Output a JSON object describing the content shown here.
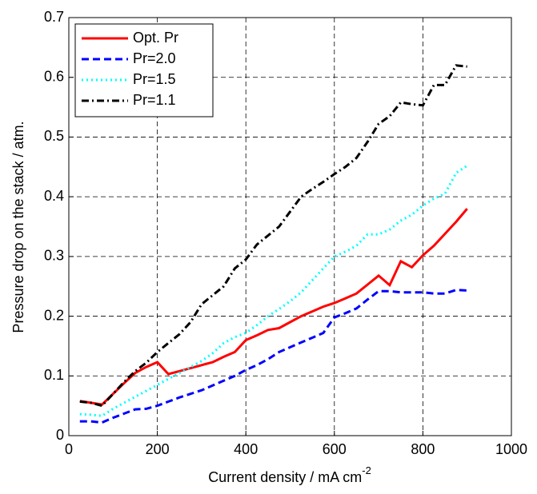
{
  "chart_data": {
    "type": "line",
    "xlabel": "Current density / mA cm",
    "xlabel_sup": "-2",
    "ylabel": "Pressure drop on the stack / atm.",
    "x": [
      25,
      50,
      75,
      100,
      125,
      150,
      175,
      200,
      225,
      250,
      275,
      300,
      325,
      350,
      375,
      400,
      425,
      450,
      475,
      500,
      525,
      550,
      575,
      600,
      625,
      650,
      675,
      700,
      725,
      750,
      775,
      800,
      825,
      850,
      875,
      900
    ],
    "series": [
      {
        "name": "Opt. Pr",
        "color": "#ff0000",
        "dash": "solid",
        "values": [
          0.058,
          0.055,
          0.052,
          0.07,
          0.088,
          0.105,
          0.115,
          0.123,
          0.103,
          0.108,
          0.113,
          0.118,
          0.123,
          0.132,
          0.14,
          0.16,
          0.168,
          0.177,
          0.18,
          0.19,
          0.2,
          0.208,
          0.216,
          0.222,
          0.23,
          0.238,
          0.253,
          0.268,
          0.252,
          0.292,
          0.282,
          0.302,
          0.318,
          0.338,
          0.358,
          0.38
        ]
      },
      {
        "name": "Pr=2.0",
        "color": "#0000ff",
        "dash": "dashed",
        "values": [
          0.024,
          0.024,
          0.022,
          0.03,
          0.037,
          0.044,
          0.045,
          0.05,
          0.057,
          0.064,
          0.07,
          0.076,
          0.084,
          0.092,
          0.1,
          0.11,
          0.118,
          0.128,
          0.14,
          0.148,
          0.156,
          0.164,
          0.172,
          0.198,
          0.205,
          0.213,
          0.228,
          0.242,
          0.242,
          0.24,
          0.24,
          0.24,
          0.238,
          0.238,
          0.244,
          0.243
        ]
      },
      {
        "name": "Pr=1.5",
        "color": "#00ffff",
        "dash": "dotted",
        "values": [
          0.036,
          0.035,
          0.033,
          0.045,
          0.055,
          0.065,
          0.075,
          0.085,
          0.095,
          0.105,
          0.115,
          0.125,
          0.138,
          0.155,
          0.165,
          0.172,
          0.185,
          0.2,
          0.212,
          0.225,
          0.24,
          0.26,
          0.28,
          0.3,
          0.308,
          0.318,
          0.337,
          0.337,
          0.345,
          0.36,
          0.37,
          0.385,
          0.397,
          0.405,
          0.44,
          0.452
        ]
      },
      {
        "name": "Pr=1.1",
        "color": "#000000",
        "dash": "dashdot",
        "values": [
          0.057,
          0.055,
          0.05,
          0.07,
          0.09,
          0.108,
          0.122,
          0.14,
          0.155,
          0.17,
          0.19,
          0.22,
          0.235,
          0.25,
          0.28,
          0.295,
          0.32,
          0.335,
          0.35,
          0.375,
          0.4,
          0.413,
          0.425,
          0.438,
          0.45,
          0.465,
          0.492,
          0.522,
          0.535,
          0.558,
          0.555,
          0.553,
          0.587,
          0.587,
          0.62,
          0.618
        ]
      }
    ],
    "xlim": [
      0,
      1000
    ],
    "xticks": [
      0,
      200,
      400,
      600,
      800,
      1000
    ],
    "ylim": [
      0,
      0.7
    ],
    "yticks": [
      0,
      0.1,
      0.2,
      0.3,
      0.4,
      0.5,
      0.6,
      0.7
    ],
    "grid": true,
    "legend": "upper-left"
  }
}
